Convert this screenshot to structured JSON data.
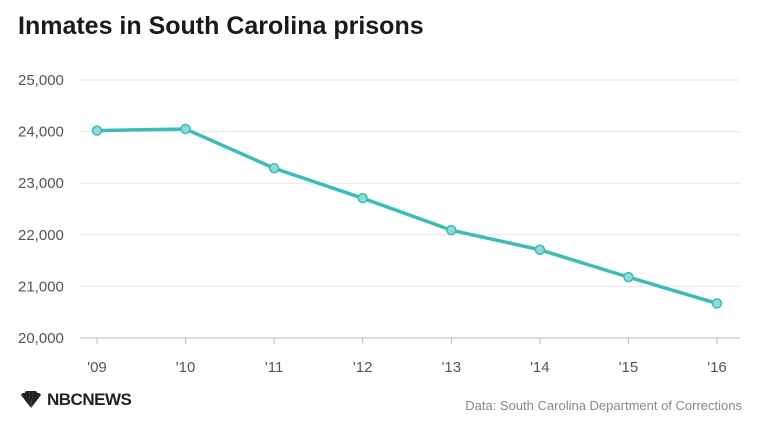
{
  "chart_data": {
    "type": "line",
    "title": "Inmates in South Carolina prisons",
    "categories": [
      "'09",
      "'10",
      "'11",
      "'12",
      "'13",
      "'14",
      "'15",
      "'16"
    ],
    "series": [
      {
        "values": [
          24020,
          24050,
          23290,
          22710,
          22090,
          21710,
          21180,
          20670
        ]
      }
    ],
    "ylim": [
      20000,
      25000
    ],
    "yticks": [
      20000,
      21000,
      22000,
      23000,
      24000,
      25000
    ],
    "ytick_labels": [
      "20,000",
      "21,000",
      "22,000",
      "23,000",
      "24,000",
      "25,000"
    ],
    "grid": true,
    "line_color": "#3cbcb4"
  },
  "brand": {
    "logo_text": "NBCNEWS",
    "logo_icon": "peacock-icon"
  },
  "source": "Data: South Carolina Department of Corrections"
}
